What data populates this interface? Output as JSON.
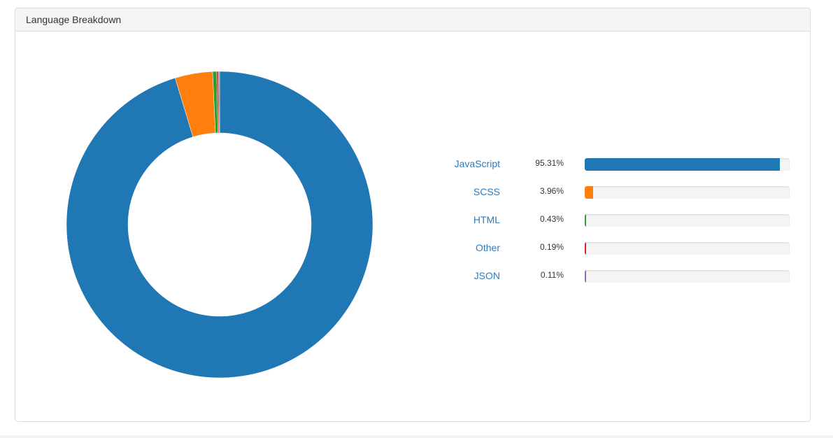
{
  "panel": {
    "title": "Language Breakdown"
  },
  "chart_data": {
    "type": "pie",
    "style": "donut",
    "categories": [
      "JavaScript",
      "SCSS",
      "HTML",
      "Other",
      "JSON"
    ],
    "values": [
      95.31,
      3.96,
      0.43,
      0.19,
      0.11
    ],
    "labels": [
      "95.31%",
      "3.96%",
      "0.43%",
      "0.19%",
      "0.11%"
    ],
    "colors": [
      "#1f77b4",
      "#ff7f0e",
      "#2ca02c",
      "#d62728",
      "#9467bd"
    ],
    "legend": "right"
  }
}
